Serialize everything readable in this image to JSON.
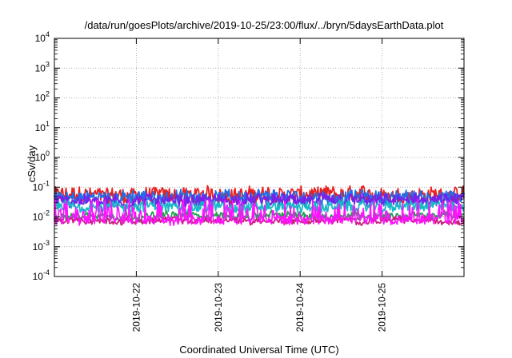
{
  "chart_data": {
    "type": "line",
    "title": "/data/run/goesPlots/archive/2019-10-25/23:00/flux/../bryn/5daysEarthData.plot",
    "xlabel": "Coordinated Universal Time (UTC)",
    "ylabel": "cSv/day",
    "yscale": "log",
    "ylim": [
      0.0001,
      10000
    ],
    "xlim": [
      "2019-10-21 00:00",
      "2019-10-26 00:00"
    ],
    "y_ticks": [
      {
        "base": "10",
        "exp": "-4"
      },
      {
        "base": "10",
        "exp": "-3"
      },
      {
        "base": "10",
        "exp": "-2"
      },
      {
        "base": "10",
        "exp": "-1"
      },
      {
        "base": "10",
        "exp": "0"
      },
      {
        "base": "10",
        "exp": "1"
      },
      {
        "base": "10",
        "exp": "2"
      },
      {
        "base": "10",
        "exp": "3"
      },
      {
        "base": "10",
        "exp": "4"
      }
    ],
    "x_ticks": [
      "2019-10-22",
      "2019-10-23",
      "2019-10-24",
      "2019-10-25"
    ],
    "grid": true,
    "legend": "none",
    "series": [
      {
        "color": "#e8201f",
        "level": 0.055,
        "fluct": 1.8
      },
      {
        "color": "#1f6fe8",
        "level": 0.045,
        "fluct": 1.7
      },
      {
        "color": "#7b1fe8",
        "level": 0.035,
        "fluct": 1.6
      },
      {
        "color": "#18b8c8",
        "level": 0.022,
        "fluct": 1.5
      },
      {
        "color": "#1fa050",
        "level": 0.011,
        "fluct": 1.3
      },
      {
        "color": "#c8207a",
        "level": 0.0075,
        "fluct": 1.2
      },
      {
        "color": "#ff10ff",
        "level": 0.009,
        "fluct": 3.2
      }
    ]
  }
}
